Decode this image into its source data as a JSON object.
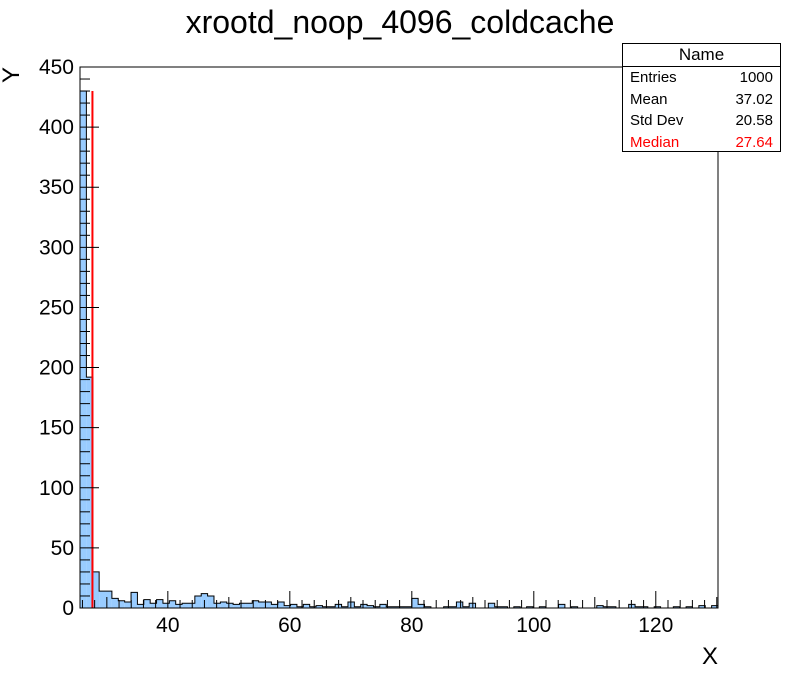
{
  "chart_data": {
    "type": "bar",
    "title": "xrootd_noop_4096_coldcache",
    "xlabel": "X",
    "ylabel": "Y",
    "xlim": [
      25.6,
      130.2
    ],
    "ylim": [
      0,
      450
    ],
    "x_ticks": [
      40,
      60,
      80,
      100,
      120
    ],
    "y_ticks": [
      0,
      50,
      100,
      150,
      200,
      250,
      300,
      350,
      400,
      450
    ],
    "bin_width": 1.046,
    "bin_low_edges": [
      25.6,
      26.646,
      27.692,
      28.738,
      29.784,
      30.83,
      31.876,
      32.922,
      33.968,
      35.014,
      36.06,
      37.106,
      38.152,
      39.198,
      40.244,
      41.29,
      42.336,
      43.382,
      44.428,
      45.474,
      46.52,
      47.566,
      48.612,
      49.658,
      50.704,
      51.75,
      52.796,
      53.842,
      54.888,
      55.934,
      56.98,
      58.026,
      59.072,
      60.118,
      61.164,
      62.21,
      63.256,
      64.302,
      65.348,
      66.394,
      67.44,
      68.486,
      69.532,
      70.578,
      71.624,
      72.67,
      73.716,
      74.762,
      75.808,
      76.854,
      77.9,
      78.946,
      79.992,
      81.038,
      82.084,
      83.13,
      84.176,
      85.222,
      86.268,
      87.314,
      88.36,
      89.406,
      90.452,
      91.498,
      92.544,
      93.59,
      94.636,
      95.682,
      96.728,
      97.774,
      98.82,
      99.866,
      100.912,
      101.958,
      103.004,
      104.05,
      105.096,
      106.142,
      107.188,
      108.234,
      109.28,
      110.326,
      111.372,
      112.418,
      113.464,
      114.51,
      115.556,
      116.602,
      117.648,
      118.694,
      119.74,
      120.786,
      121.832,
      122.878,
      123.924,
      124.97,
      126.016,
      127.062,
      128.108,
      129.154
    ],
    "values": [
      430,
      192,
      30,
      14,
      14,
      8,
      6,
      5,
      13,
      3,
      7,
      4,
      7,
      4,
      6,
      3,
      4,
      4,
      10,
      12,
      10,
      4,
      5,
      4,
      3,
      4,
      4,
      6,
      5,
      5,
      3,
      5,
      2,
      3,
      1,
      3,
      1,
      2,
      1,
      1,
      3,
      1,
      5,
      1,
      3,
      2,
      1,
      3,
      1,
      1,
      1,
      1,
      8,
      3,
      1,
      0,
      0,
      1,
      1,
      5,
      1,
      4,
      0,
      0,
      4,
      1,
      1,
      0,
      1,
      0,
      1,
      0,
      1,
      0,
      0,
      3,
      0,
      1,
      0,
      0,
      0,
      2,
      1,
      1,
      0,
      0,
      3,
      1,
      1,
      0,
      1,
      0,
      0,
      1,
      0,
      1,
      0,
      2,
      0,
      2
    ],
    "median": 27.64,
    "colors": {
      "fill": "#99ccff",
      "line": "#000000",
      "median": "#ff0000"
    }
  },
  "stats": {
    "title": "Name",
    "rows": [
      {
        "label": "Entries",
        "value": "1000"
      },
      {
        "label": "Mean",
        "value": "37.02"
      },
      {
        "label": "Std Dev",
        "value": "20.58"
      },
      {
        "label": "Median",
        "value": "27.64"
      }
    ]
  }
}
